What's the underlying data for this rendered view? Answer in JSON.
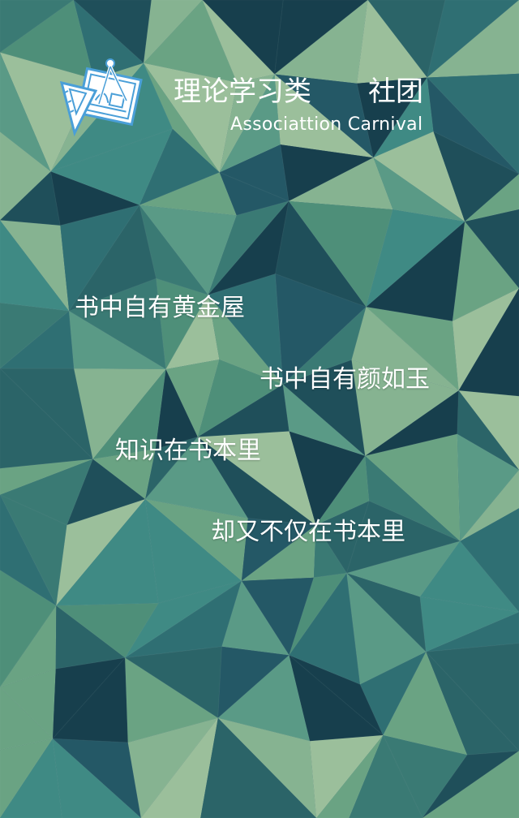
{
  "header": {
    "logo_icon": "drafting-tools-icon",
    "title": "理论学习类",
    "tag": "社团",
    "subtitle": "Associattion Carnival"
  },
  "poem": {
    "lines": [
      "书中自有黄金屋",
      "书中自有颜如玉",
      "知识在书本里",
      "却又不仅在书本里"
    ]
  },
  "colors": {
    "text": "#ffffff",
    "logo_blue": "#4a9fd8",
    "palette": [
      "#1f4f5a",
      "#2b6468",
      "#3a7a74",
      "#4e8f79",
      "#6aa383",
      "#86b391",
      "#173f4d",
      "#2f6f73",
      "#5a9a86",
      "#245866",
      "#9bbf9b",
      "#3f8a84"
    ]
  }
}
